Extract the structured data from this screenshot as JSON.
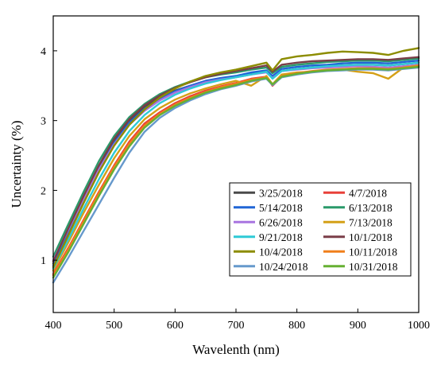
{
  "chart_data": {
    "type": "line",
    "xlabel": "Wavelenth (nm)",
    "ylabel": "Uncertainty (%)",
    "xlim": [
      400,
      1000
    ],
    "ylim": [
      0.25,
      4.5
    ],
    "xticks": [
      400,
      500,
      600,
      700,
      800,
      900,
      1000
    ],
    "yticks": [
      1,
      2,
      3,
      4
    ],
    "grid": false,
    "legend_position": "bottom-right",
    "legend_columns": 2,
    "x": [
      400,
      425,
      450,
      475,
      500,
      525,
      550,
      575,
      600,
      625,
      650,
      675,
      700,
      725,
      750,
      760,
      775,
      800,
      825,
      850,
      875,
      900,
      925,
      950,
      975,
      1000
    ],
    "series": [
      {
        "name": "3/25/2018",
        "color": "#4a4a4a",
        "values": [
          0.95,
          1.43,
          1.9,
          2.34,
          2.72,
          3.0,
          3.2,
          3.33,
          3.43,
          3.5,
          3.56,
          3.6,
          3.63,
          3.67,
          3.7,
          3.62,
          3.71,
          3.74,
          3.76,
          3.78,
          3.79,
          3.8,
          3.8,
          3.79,
          3.81,
          3.83
        ]
      },
      {
        "name": "4/7/2018",
        "color": "#e8403a",
        "values": [
          0.8,
          1.18,
          1.58,
          1.98,
          2.36,
          2.7,
          2.96,
          3.12,
          3.25,
          3.35,
          3.43,
          3.49,
          3.54,
          3.6,
          3.63,
          3.5,
          3.63,
          3.67,
          3.7,
          3.72,
          3.73,
          3.74,
          3.74,
          3.73,
          3.75,
          3.77
        ]
      },
      {
        "name": "5/14/2018",
        "color": "#2166d6",
        "values": [
          0.92,
          1.4,
          1.86,
          2.3,
          2.68,
          2.97,
          3.17,
          3.31,
          3.42,
          3.5,
          3.57,
          3.61,
          3.64,
          3.69,
          3.72,
          3.64,
          3.74,
          3.77,
          3.79,
          3.8,
          3.82,
          3.83,
          3.83,
          3.82,
          3.84,
          3.86
        ]
      },
      {
        "name": "6/13/2018",
        "color": "#2a9a6a",
        "values": [
          1.05,
          1.52,
          1.98,
          2.42,
          2.78,
          3.05,
          3.24,
          3.38,
          3.48,
          3.56,
          3.62,
          3.66,
          3.69,
          3.73,
          3.76,
          3.68,
          3.77,
          3.8,
          3.82,
          3.84,
          3.85,
          3.86,
          3.86,
          3.85,
          3.87,
          3.89
        ]
      },
      {
        "name": "6/26/2018",
        "color": "#a874e0",
        "values": [
          1.0,
          1.44,
          1.88,
          2.3,
          2.66,
          2.94,
          3.14,
          3.29,
          3.4,
          3.48,
          3.55,
          3.59,
          3.62,
          3.66,
          3.69,
          3.61,
          3.71,
          3.73,
          3.75,
          3.76,
          3.77,
          3.78,
          3.77,
          3.76,
          3.78,
          3.8
        ]
      },
      {
        "name": "7/13/2018",
        "color": "#d4a017",
        "values": [
          0.85,
          1.26,
          1.68,
          2.08,
          2.46,
          2.78,
          3.02,
          3.18,
          3.3,
          3.39,
          3.46,
          3.52,
          3.57,
          3.5,
          3.64,
          3.52,
          3.66,
          3.69,
          3.7,
          3.72,
          3.73,
          3.7,
          3.68,
          3.6,
          3.76,
          3.79
        ]
      },
      {
        "name": "9/21/2018",
        "color": "#2ecad6",
        "values": [
          0.88,
          1.3,
          1.74,
          2.16,
          2.54,
          2.85,
          3.08,
          3.25,
          3.37,
          3.46,
          3.53,
          3.58,
          3.62,
          3.66,
          3.7,
          3.6,
          3.71,
          3.74,
          3.76,
          3.78,
          3.79,
          3.8,
          3.8,
          3.79,
          3.81,
          3.83
        ]
      },
      {
        "name": "10/1/2018",
        "color": "#7a3e48",
        "values": [
          0.98,
          1.46,
          1.92,
          2.36,
          2.74,
          3.02,
          3.22,
          3.36,
          3.47,
          3.55,
          3.62,
          3.67,
          3.71,
          3.75,
          3.79,
          3.7,
          3.8,
          3.83,
          3.85,
          3.86,
          3.87,
          3.88,
          3.88,
          3.87,
          3.89,
          3.91
        ]
      },
      {
        "name": "10/4/2018",
        "color": "#8c8c00",
        "values": [
          0.9,
          1.36,
          1.82,
          2.26,
          2.64,
          2.94,
          3.16,
          3.33,
          3.46,
          3.56,
          3.64,
          3.69,
          3.73,
          3.78,
          3.83,
          3.72,
          3.88,
          3.92,
          3.94,
          3.97,
          3.99,
          3.98,
          3.97,
          3.94,
          4.0,
          4.04
        ]
      },
      {
        "name": "10/11/2018",
        "color": "#f07f1b",
        "values": [
          0.78,
          1.16,
          1.56,
          1.96,
          2.34,
          2.67,
          2.93,
          3.1,
          3.23,
          3.33,
          3.41,
          3.48,
          3.53,
          3.59,
          3.62,
          3.52,
          3.64,
          3.68,
          3.71,
          3.73,
          3.74,
          3.75,
          3.75,
          3.74,
          3.76,
          3.78
        ]
      },
      {
        "name": "10/24/2018",
        "color": "#6699cc",
        "values": [
          0.68,
          1.04,
          1.42,
          1.8,
          2.18,
          2.54,
          2.84,
          3.04,
          3.18,
          3.29,
          3.38,
          3.45,
          3.5,
          3.56,
          3.6,
          3.51,
          3.62,
          3.66,
          3.69,
          3.71,
          3.72,
          3.73,
          3.73,
          3.72,
          3.74,
          3.76
        ]
      },
      {
        "name": "10/31/2018",
        "color": "#66b032",
        "values": [
          0.75,
          1.12,
          1.52,
          1.92,
          2.3,
          2.63,
          2.9,
          3.08,
          3.21,
          3.31,
          3.4,
          3.46,
          3.51,
          3.57,
          3.61,
          3.52,
          3.63,
          3.67,
          3.7,
          3.72,
          3.73,
          3.74,
          3.74,
          3.73,
          3.75,
          3.77
        ]
      }
    ]
  }
}
